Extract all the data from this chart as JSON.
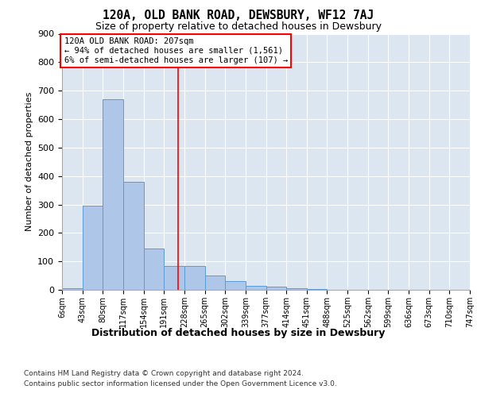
{
  "title": "120A, OLD BANK ROAD, DEWSBURY, WF12 7AJ",
  "subtitle": "Size of property relative to detached houses in Dewsbury",
  "xlabel": "Distribution of detached houses by size in Dewsbury",
  "ylabel": "Number of detached properties",
  "bar_color": "#aec6e8",
  "bar_edge_color": "#5b9bd5",
  "background_color": "#dce6f1",
  "grid_color": "#ffffff",
  "bar_heights": [
    5,
    295,
    670,
    380,
    145,
    85,
    85,
    50,
    30,
    15,
    10,
    5,
    2,
    0,
    0,
    0,
    0,
    0,
    0,
    0
  ],
  "bin_labels": [
    "6sqm",
    "43sqm",
    "80sqm",
    "117sqm",
    "154sqm",
    "191sqm",
    "228sqm",
    "265sqm",
    "302sqm",
    "339sqm",
    "377sqm",
    "414sqm",
    "451sqm",
    "488sqm",
    "525sqm",
    "562sqm",
    "599sqm",
    "636sqm",
    "673sqm",
    "710sqm",
    "747sqm"
  ],
  "property_line_x": 5.675,
  "annotation_line1": "120A OLD BANK ROAD: 207sqm",
  "annotation_line2": "← 94% of detached houses are smaller (1,561)",
  "annotation_line3": "6% of semi-detached houses are larger (107) →",
  "ylim": [
    0,
    900
  ],
  "yticks": [
    0,
    100,
    200,
    300,
    400,
    500,
    600,
    700,
    800,
    900
  ],
  "footer_line1": "Contains HM Land Registry data © Crown copyright and database right 2024.",
  "footer_line2": "Contains public sector information licensed under the Open Government Licence v3.0."
}
